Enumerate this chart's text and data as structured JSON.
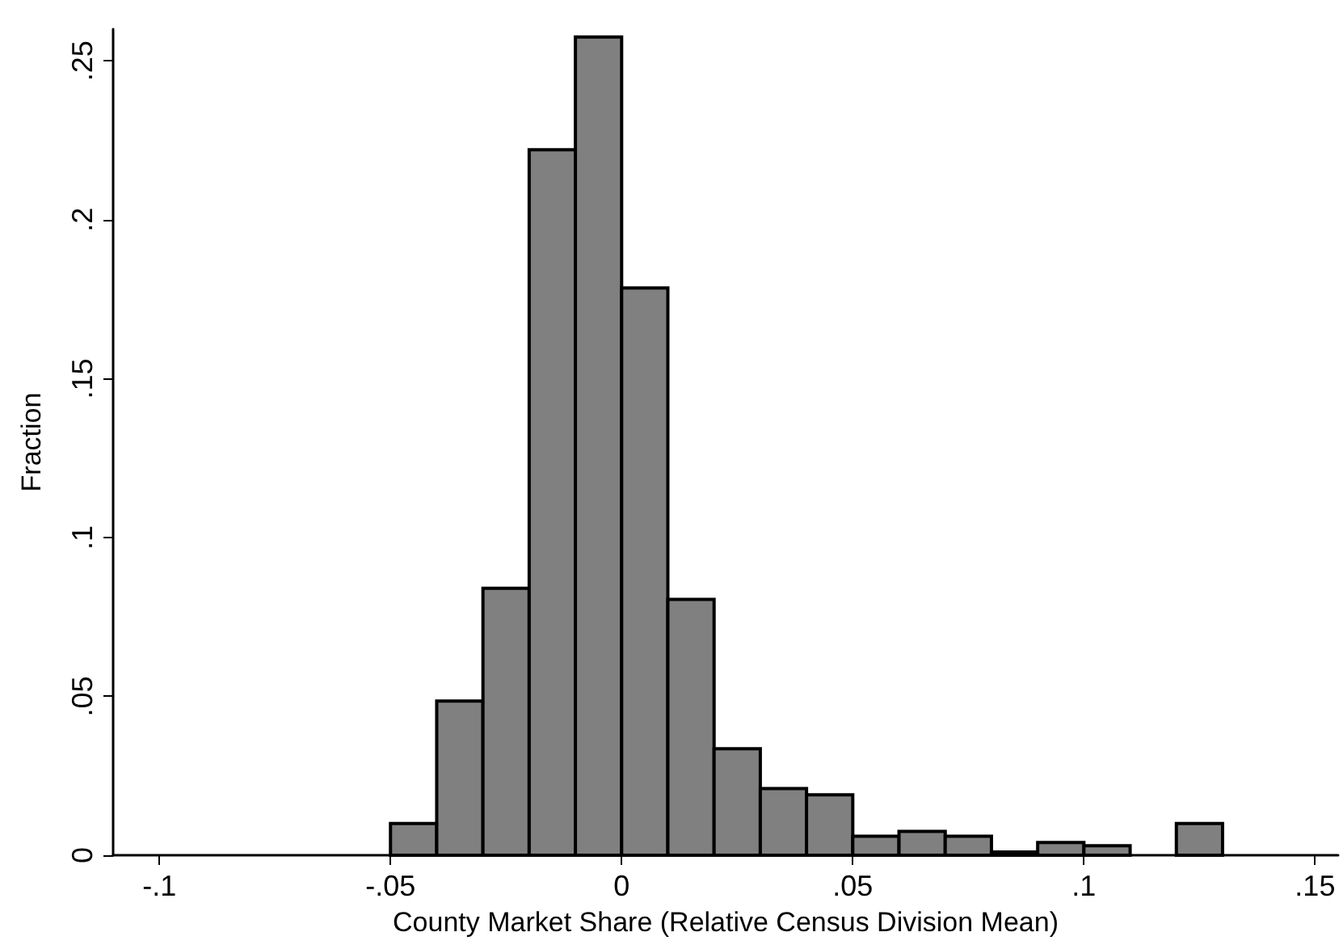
{
  "chart_data": {
    "type": "histogram",
    "xlabel": "County Market Share (Relative Census Division Mean)",
    "ylabel": "Fraction",
    "bins": [
      -0.05,
      -0.04,
      -0.03,
      -0.02,
      -0.01,
      0,
      0.01,
      0.02,
      0.03,
      0.04,
      0.05,
      0.06,
      0.07,
      0.08,
      0.09,
      0.1,
      0.11,
      0.12,
      0.13
    ],
    "values": [
      0.01,
      0.0485,
      0.084,
      0.222,
      0.2575,
      0.1785,
      0.0805,
      0.0335,
      0.021,
      0.019,
      0.006,
      0.0075,
      0.006,
      0.001,
      0.004,
      0.003,
      0,
      0.01
    ],
    "color": "#808080",
    "xlim": [
      -0.11,
      0.155
    ],
    "xticks": [
      {
        "value": -0.1,
        "label": "-.1"
      },
      {
        "value": -0.05,
        "label": "-.05"
      },
      {
        "value": 0,
        "label": "0"
      },
      {
        "value": 0.05,
        "label": ".05"
      },
      {
        "value": 0.1,
        "label": ".1"
      },
      {
        "value": 0.15,
        "label": ".15"
      }
    ],
    "ylim": [
      0,
      0.26
    ],
    "yticks": [
      {
        "value": 0,
        "label": "0"
      },
      {
        "value": 0.05,
        "label": ".05"
      },
      {
        "value": 0.1,
        "label": ".1"
      },
      {
        "value": 0.15,
        "label": ".15"
      },
      {
        "value": 0.2,
        "label": ".2"
      },
      {
        "value": 0.25,
        "label": ".25"
      }
    ],
    "grid": false
  }
}
